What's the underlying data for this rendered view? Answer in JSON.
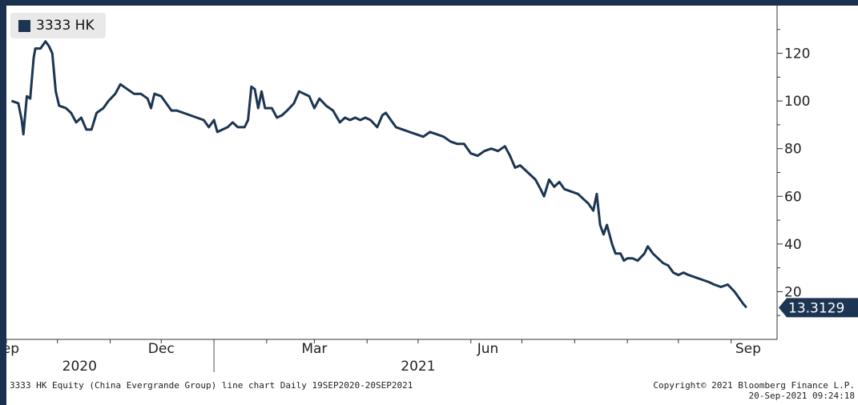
{
  "chart_data": {
    "type": "line",
    "series": [
      {
        "name": "3333 HK",
        "color": "#1c3552",
        "points": [
          [
            "2020-09-18",
            100
          ],
          [
            "2020-09-22",
            99
          ],
          [
            "2020-09-24",
            92
          ],
          [
            "2020-09-25",
            86
          ],
          [
            "2020-09-27",
            102
          ],
          [
            "2020-09-29",
            101
          ],
          [
            "2020-10-01",
            118
          ],
          [
            "2020-10-02",
            122
          ],
          [
            "2020-10-05",
            122
          ],
          [
            "2020-10-08",
            125
          ],
          [
            "2020-10-10",
            123
          ],
          [
            "2020-10-12",
            120
          ],
          [
            "2020-10-14",
            104
          ],
          [
            "2020-10-16",
            98
          ],
          [
            "2020-10-20",
            97
          ],
          [
            "2020-10-23",
            95
          ],
          [
            "2020-10-26",
            91
          ],
          [
            "2020-10-29",
            93
          ],
          [
            "2020-11-01",
            88
          ],
          [
            "2020-11-04",
            88
          ],
          [
            "2020-11-07",
            95
          ],
          [
            "2020-11-11",
            97
          ],
          [
            "2020-11-14",
            100
          ],
          [
            "2020-11-18",
            103
          ],
          [
            "2020-11-21",
            107
          ],
          [
            "2020-11-25",
            105
          ],
          [
            "2020-11-29",
            103
          ],
          [
            "2020-12-03",
            103
          ],
          [
            "2020-12-07",
            101
          ],
          [
            "2020-12-09",
            97
          ],
          [
            "2020-12-11",
            103
          ],
          [
            "2020-12-15",
            102
          ],
          [
            "2020-12-18",
            99
          ],
          [
            "2020-12-21",
            96
          ],
          [
            "2020-12-24",
            96
          ],
          [
            "2020-12-28",
            95
          ],
          [
            "2021-01-01",
            94
          ],
          [
            "2021-01-05",
            93
          ],
          [
            "2021-01-09",
            92
          ],
          [
            "2021-01-12",
            89
          ],
          [
            "2021-01-15",
            92
          ],
          [
            "2021-01-17",
            87
          ],
          [
            "2021-01-20",
            88
          ],
          [
            "2021-01-23",
            89
          ],
          [
            "2021-01-26",
            91
          ],
          [
            "2021-01-29",
            89
          ],
          [
            "2021-02-02",
            89
          ],
          [
            "2021-02-04",
            92
          ],
          [
            "2021-02-06",
            106
          ],
          [
            "2021-02-08",
            105
          ],
          [
            "2021-02-10",
            97
          ],
          [
            "2021-02-12",
            104
          ],
          [
            "2021-02-14",
            97
          ],
          [
            "2021-02-18",
            97
          ],
          [
            "2021-02-21",
            93
          ],
          [
            "2021-02-24",
            94
          ],
          [
            "2021-02-27",
            96
          ],
          [
            "2021-03-03",
            99
          ],
          [
            "2021-03-06",
            104
          ],
          [
            "2021-03-09",
            103
          ],
          [
            "2021-03-12",
            102
          ],
          [
            "2021-03-15",
            97
          ],
          [
            "2021-03-18",
            101
          ],
          [
            "2021-03-22",
            98
          ],
          [
            "2021-03-26",
            96
          ],
          [
            "2021-03-30",
            91
          ],
          [
            "2021-04-02",
            93
          ],
          [
            "2021-04-05",
            92
          ],
          [
            "2021-04-08",
            93
          ],
          [
            "2021-04-11",
            92
          ],
          [
            "2021-04-14",
            93
          ],
          [
            "2021-04-17",
            92
          ],
          [
            "2021-04-21",
            89
          ],
          [
            "2021-04-24",
            94
          ],
          [
            "2021-04-26",
            95
          ],
          [
            "2021-04-29",
            92
          ],
          [
            "2021-05-02",
            89
          ],
          [
            "2021-05-06",
            88
          ],
          [
            "2021-05-10",
            87
          ],
          [
            "2021-05-14",
            86
          ],
          [
            "2021-05-18",
            85
          ],
          [
            "2021-05-22",
            87
          ],
          [
            "2021-05-26",
            86
          ],
          [
            "2021-05-30",
            85
          ],
          [
            "2021-06-03",
            83
          ],
          [
            "2021-06-07",
            82
          ],
          [
            "2021-06-11",
            82
          ],
          [
            "2021-06-15",
            78
          ],
          [
            "2021-06-19",
            77
          ],
          [
            "2021-06-23",
            79
          ],
          [
            "2021-06-27",
            80
          ],
          [
            "2021-07-01",
            79
          ],
          [
            "2021-07-05",
            81
          ],
          [
            "2021-07-08",
            77
          ],
          [
            "2021-07-11",
            72
          ],
          [
            "2021-07-14",
            73
          ],
          [
            "2021-07-17",
            71
          ],
          [
            "2021-07-20",
            69
          ],
          [
            "2021-07-23",
            67
          ],
          [
            "2021-07-26",
            63
          ],
          [
            "2021-07-28",
            60
          ],
          [
            "2021-07-31",
            67
          ],
          [
            "2021-08-03",
            64
          ],
          [
            "2021-08-06",
            66
          ],
          [
            "2021-08-09",
            63
          ],
          [
            "2021-08-13",
            62
          ],
          [
            "2021-08-17",
            61
          ],
          [
            "2021-08-20",
            59
          ],
          [
            "2021-08-23",
            57
          ],
          [
            "2021-08-26",
            54
          ],
          [
            "2021-08-28",
            61
          ],
          [
            "2021-08-30",
            48
          ],
          [
            "2021-09-01",
            44
          ],
          [
            "2021-09-03",
            48
          ],
          [
            "2021-09-06",
            40
          ],
          [
            "2021-09-08",
            36
          ],
          [
            "2021-09-11",
            36
          ],
          [
            "2021-09-13",
            33
          ],
          [
            "2021-09-15",
            34
          ],
          [
            "2021-09-18",
            34
          ],
          [
            "2021-09-21",
            33
          ],
          [
            "2021-09-25",
            36
          ],
          [
            "2021-09-27",
            39
          ],
          [
            "2021-09-30",
            36
          ],
          [
            "2021-10-03",
            34
          ],
          [
            "2021-10-06",
            32
          ],
          [
            "2021-10-09",
            31
          ],
          [
            "2021-10-12",
            28
          ],
          [
            "2021-10-15",
            27
          ],
          [
            "2021-10-18",
            28
          ],
          [
            "2021-10-21",
            27
          ],
          [
            "2021-10-25",
            26
          ],
          [
            "2021-10-29",
            25
          ],
          [
            "2021-11-02",
            24
          ],
          [
            "2021-11-05",
            23
          ],
          [
            "2021-11-09",
            22
          ],
          [
            "2021-11-13",
            23
          ],
          [
            "2021-11-17",
            20
          ],
          [
            "2021-11-20",
            17
          ],
          [
            "2021-11-22",
            15
          ],
          [
            "2021-11-24",
            13.3129
          ]
        ]
      }
    ],
    "ylim": [
      0,
      140
    ],
    "yticks": [
      20,
      40,
      60,
      80,
      100,
      120
    ],
    "ytick_labels": [
      "20",
      "40",
      "60",
      "80",
      "100",
      "120"
    ],
    "xrange": [
      "2020-09-15",
      "2021-12-12"
    ],
    "x_month_labels": [
      {
        "label": "Sep",
        "date": "2020-09-15"
      },
      {
        "label": "Dec",
        "date": "2020-12-15"
      },
      {
        "label": "Mar",
        "date": "2021-03-15"
      },
      {
        "label": "Jun",
        "date": "2021-06-25"
      },
      {
        "label": "Sep",
        "date": "2021-11-25"
      }
    ],
    "x_year_labels": [
      {
        "label": "2020",
        "date": "2020-10-28"
      },
      {
        "label": "2021",
        "date": "2021-05-15"
      }
    ],
    "year_divider": "2021-01-15",
    "last_value_label": "13.3129",
    "grid": false,
    "legend_position": "top-left"
  },
  "footer": {
    "description": "3333 HK Equity (China Evergrande Group) line chart  Daily 19SEP2020-20SEP2021",
    "copyright": "Copyright© 2021 Bloomberg Finance L.P.",
    "timestamp": "20-Sep-2021 09:24:18"
  },
  "colors": {
    "line": "#1c3552",
    "background_outer": "#1b2f4e",
    "panel": "#ffffff"
  }
}
